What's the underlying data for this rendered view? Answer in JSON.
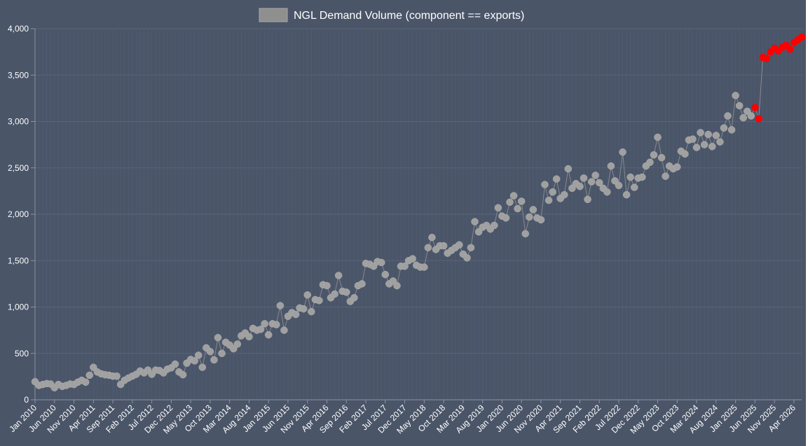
{
  "chart_data": {
    "type": "line",
    "title": "",
    "xlabel": "",
    "ylabel": "",
    "ylim": [
      0,
      4000
    ],
    "y_ticks": [
      "0",
      "500",
      "1,000",
      "1,500",
      "2,000",
      "2,500",
      "3,000",
      "3,500",
      "4,000"
    ],
    "x_start": "Jan 2010",
    "x_tick_labels": [
      "Jan 2010",
      "Jun 2010",
      "Nov 2010",
      "Apr 2011",
      "Sep 2011",
      "Feb 2012",
      "Jul 2012",
      "Dec 2012",
      "May 2013",
      "Oct 2013",
      "Mar 2014",
      "Aug 2014",
      "Jan 2015",
      "Jun 2015",
      "Nov 2015",
      "Apr 2016",
      "Sep 2016",
      "Feb 2017",
      "Jul 2017",
      "Dec 2017",
      "May 2018",
      "Oct 2018",
      "Mar 2019",
      "Aug 2019",
      "Jan 2020",
      "Jun 2020",
      "Nov 2020",
      "Apr 2021",
      "Sep 2021",
      "Feb 2022",
      "Jul 2022",
      "Dec 2022",
      "May 2023",
      "Oct 2023",
      "Mar 2024",
      "Aug 2024",
      "Jan 2025",
      "Jun 2025",
      "Nov 2025",
      "Apr 2026"
    ],
    "grid": true,
    "legend_position": "top",
    "series": [
      {
        "name": "NGL Demand Volume (component == exports)",
        "color": "#a0a0a0",
        "line_color": "#8a8a8a",
        "highlight_color": "#ff0000",
        "highlight_from_index": 185,
        "values": [
          195,
          155,
          165,
          175,
          170,
          130,
          165,
          145,
          155,
          170,
          165,
          190,
          210,
          190,
          265,
          350,
          300,
          280,
          270,
          265,
          255,
          255,
          165,
          210,
          235,
          255,
          275,
          310,
          290,
          320,
          275,
          320,
          315,
          290,
          330,
          345,
          385,
          300,
          270,
          395,
          435,
          420,
          480,
          350,
          560,
          520,
          430,
          670,
          500,
          620,
          590,
          550,
          600,
          690,
          720,
          680,
          770,
          750,
          760,
          820,
          700,
          820,
          810,
          1015,
          750,
          900,
          940,
          920,
          990,
          980,
          1130,
          950,
          1080,
          1070,
          1240,
          1230,
          1100,
          1140,
          1340,
          1170,
          1160,
          1060,
          1100,
          1230,
          1250,
          1470,
          1460,
          1440,
          1490,
          1480,
          1350,
          1250,
          1280,
          1230,
          1440,
          1440,
          1500,
          1520,
          1450,
          1430,
          1430,
          1640,
          1750,
          1620,
          1660,
          1660,
          1580,
          1610,
          1640,
          1670,
          1570,
          1530,
          1640,
          1920,
          1810,
          1860,
          1880,
          1840,
          1880,
          2070,
          1980,
          1960,
          2130,
          2200,
          2060,
          2140,
          1790,
          1970,
          2050,
          1960,
          1940,
          2320,
          2150,
          2240,
          2380,
          2170,
          2210,
          2490,
          2280,
          2330,
          2300,
          2390,
          2160,
          2350,
          2420,
          2340,
          2280,
          2240,
          2520,
          2360,
          2310,
          2670,
          2210,
          2400,
          2290,
          2390,
          2400,
          2520,
          2560,
          2640,
          2830,
          2610,
          2410,
          2520,
          2490,
          2510,
          2680,
          2650,
          2800,
          2810,
          2720,
          2880,
          2750,
          2860,
          2730,
          2850,
          2780,
          2930,
          3060,
          2910,
          3280,
          3170,
          3040,
          3110,
          3060,
          3150,
          3030,
          3690,
          3680,
          3750,
          3790,
          3760,
          3800,
          3820,
          3780,
          3850,
          3880,
          3910
        ]
      }
    ]
  }
}
